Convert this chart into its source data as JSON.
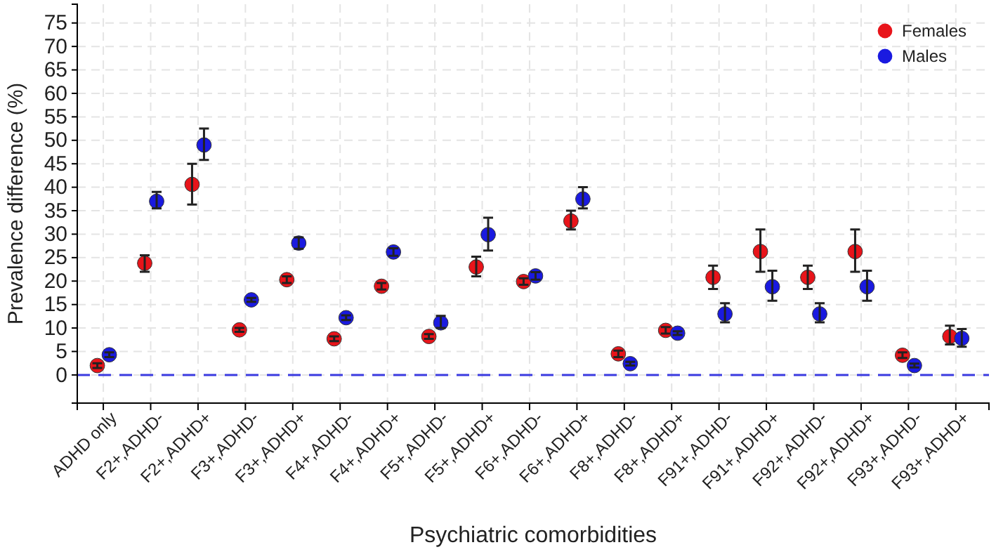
{
  "chart_data": {
    "type": "scatter",
    "xlabel": "Psychiatric comorbidities",
    "ylabel": "Prevalence difference (%)",
    "categories": [
      "ADHD only",
      "F2+,ADHD-",
      "F2+,ADHD+",
      "F3+,ADHD-",
      "F3+,ADHD+",
      "F4+,ADHD-",
      "F4+,ADHD+",
      "F5+,ADHD-",
      "F5+,ADHD+",
      "F6+,ADHD-",
      "F6+,ADHD+",
      "F8+,ADHD-",
      "F8+,ADHD+",
      "F91+,ADHD-",
      "F91+,ADHD+",
      "F92+,ADHD-",
      "F92+,ADHD+",
      "F93+,ADHD-",
      "F93+,ADHD+"
    ],
    "series": [
      {
        "name": "Females",
        "color": "#e8141a",
        "values": [
          2,
          23.8,
          40.6,
          9.6,
          20.3,
          7.7,
          18.9,
          8.2,
          23,
          19.9,
          32.8,
          4.5,
          9.5,
          20.8,
          26.3,
          20.8,
          26.3,
          4.2,
          8.2
        ],
        "errors": [
          0.5,
          [
            22,
            25.5
          ],
          [
            36.3,
            45
          ],
          0.4,
          0.7,
          0.5,
          0.7,
          0.5,
          [
            21,
            25.2
          ],
          0.7,
          [
            31,
            35
          ],
          0.7,
          0.7,
          [
            18.3,
            23.3
          ],
          [
            22,
            31
          ],
          [
            18.3,
            23.3
          ],
          [
            22,
            31
          ],
          0.6,
          [
            6.5,
            10.5
          ]
        ]
      },
      {
        "name": "Males",
        "color": "#1a1ae0",
        "values": [
          4.3,
          37,
          49,
          16,
          28.1,
          12.2,
          26.2,
          11.1,
          29.9,
          21.1,
          37.5,
          2.4,
          8.9,
          13,
          18.8,
          13,
          18.8,
          2,
          7.8
        ],
        "errors": [
          0.5,
          [
            35.5,
            39
          ],
          [
            45.8,
            52.5
          ],
          0.4,
          [
            26.9,
            29.3
          ],
          0.5,
          0.8,
          [
            10,
            12.6
          ],
          [
            26.5,
            33.5
          ],
          0.8,
          [
            35.5,
            40
          ],
          0.4,
          0.4,
          [
            11.2,
            15.3
          ],
          [
            15.8,
            22.2
          ],
          [
            11.2,
            15.3
          ],
          [
            15.8,
            22.2
          ],
          0.4,
          [
            6,
            9.8
          ]
        ]
      }
    ],
    "ylim": [
      -6,
      79
    ],
    "yticks": [
      0,
      5,
      10,
      15,
      20,
      25,
      30,
      35,
      40,
      45,
      50,
      55,
      60,
      65,
      70,
      75
    ],
    "ref_lines": [
      {
        "axis": "y",
        "value": 0,
        "color": "#3a3ae0",
        "line_style": "dashed"
      }
    ],
    "grid": true,
    "legend": "top right",
    "marker": "circle"
  }
}
